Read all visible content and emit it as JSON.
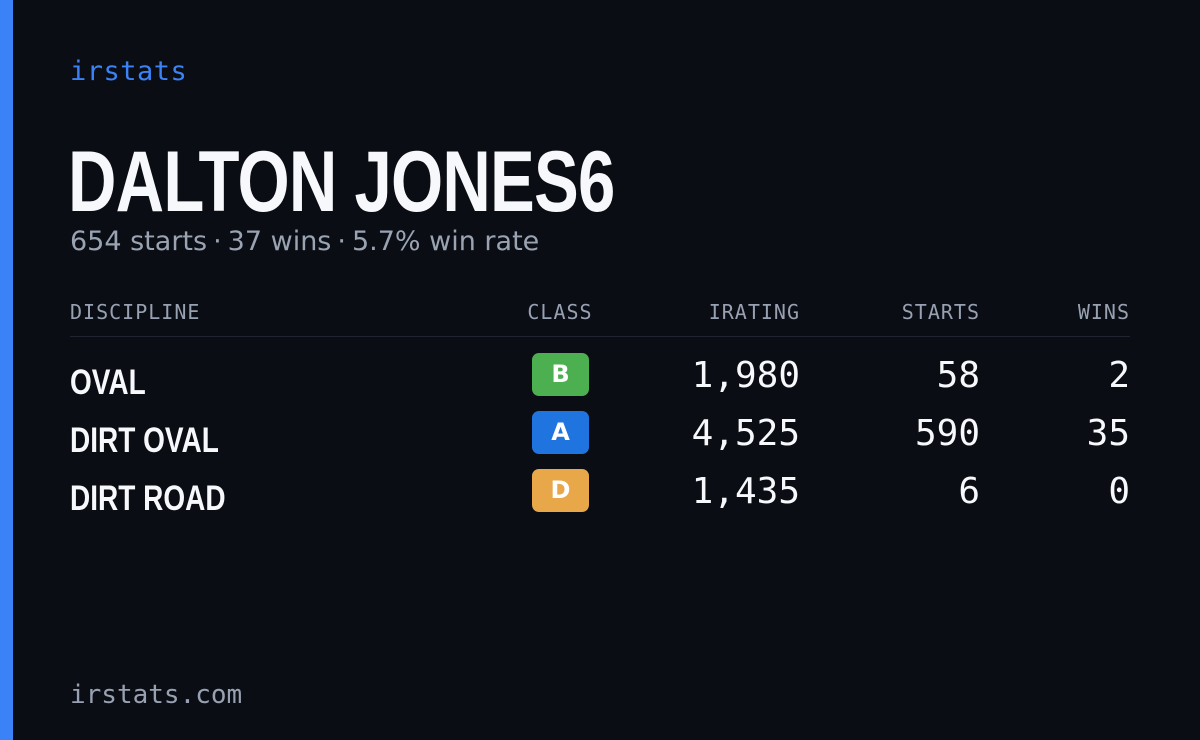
{
  "brand": "irstats",
  "driver": {
    "name": "DALTON JONES6",
    "summary": {
      "starts": "654 starts",
      "wins": "37 wins",
      "win_rate": "5.7% win rate",
      "separator": "·"
    }
  },
  "table": {
    "headers": {
      "discipline": "DISCIPLINE",
      "class": "CLASS",
      "irating": "IRATING",
      "starts": "STARTS",
      "wins": "WINS"
    },
    "rows": [
      {
        "discipline": "OVAL",
        "class": "B",
        "class_color": "#4caf50",
        "irating": "1,980",
        "starts": "58",
        "wins": "2"
      },
      {
        "discipline": "DIRT OVAL",
        "class": "A",
        "class_color": "#1f74e0",
        "irating": "4,525",
        "starts": "590",
        "wins": "35"
      },
      {
        "discipline": "DIRT ROAD",
        "class": "D",
        "class_color": "#e8a84a",
        "irating": "1,435",
        "starts": "6",
        "wins": "0"
      }
    ]
  },
  "footer": "irstats.com",
  "colors": {
    "accent": "#3b82f6",
    "background": "#0b0d14"
  }
}
